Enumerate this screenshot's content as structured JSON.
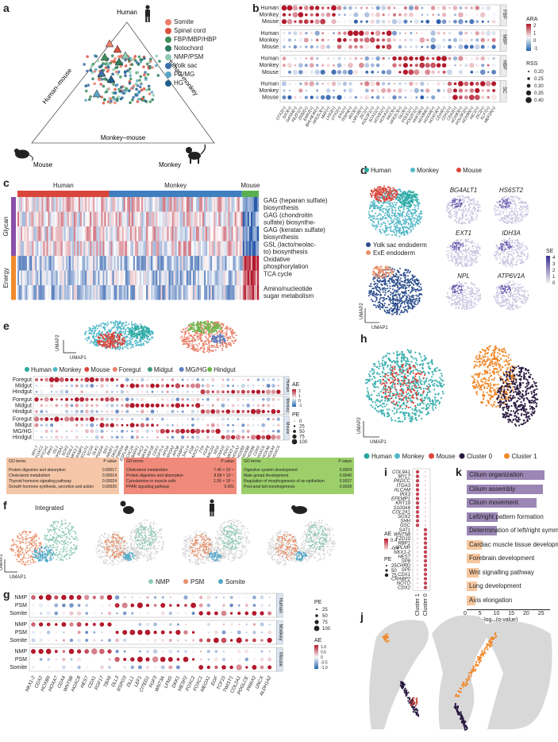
{
  "panels": {
    "a": "a",
    "b": "b",
    "c": "c",
    "d": "d",
    "e": "e",
    "f": "f",
    "g": "g",
    "h": "h",
    "i": "i",
    "j": "j",
    "k": "k"
  },
  "panel_a": {
    "top": "Human",
    "left_mid": "Human–mouse",
    "right_mid": "Human–monkey",
    "bottom_mid": "Monkey–mouse",
    "bl": "Mouse",
    "br": "Monkey",
    "legend": [
      {
        "label": "Somite",
        "color": "#e8806a"
      },
      {
        "label": "Spinal cord",
        "color": "#d9513e"
      },
      {
        "label": "FBP/MBP/HBP",
        "color": "#3f8f5a"
      },
      {
        "label": "Notochord",
        "color": "#2e7d5b"
      },
      {
        "label": "NMP/PSM",
        "color": "#8fcab3"
      },
      {
        "label": "Yolk sac",
        "color": "#3d6fa8"
      },
      {
        "label": "FG/MG",
        "color": "#5aa4c6"
      },
      {
        "label": "HG",
        "color": "#1e5f8a"
      }
    ]
  },
  "panel_b": {
    "rows": [
      "Human",
      "Monkey",
      "Mouse"
    ],
    "blocks": [
      "FBP",
      "MBP",
      "HBP",
      "SC"
    ],
    "genes": [
      "OTX2(+)",
      "SIX3(+)",
      "GATA4(+)",
      "FEZF1(+)",
      "ZEB2(+)",
      "EMX2(+)",
      "BHLHE40(+)",
      "NFE2L3(+)",
      "MAF(+)",
      "LHX2(+)",
      "OTX2(+)",
      "EN1(+)",
      "TFAP4(+)",
      "IRX3(+)",
      "LMX1B(+)",
      "ZIC1(+)",
      "POU3F1(+)",
      "SOX11(+)",
      "HOXB1(+)",
      "HOXA1(+)",
      "PAX3(+)",
      "NFE2L3(+)",
      "GLI3(+)",
      "POLE1(+)",
      "POU2F1(+)",
      "HNF1B(+)",
      "HOXB4(+)",
      "HOXA4(+)",
      "HOXC6(+)",
      "CDX4(+)",
      "CDX1(+)",
      "CDX2(+)",
      "HOXB3(+)",
      "POU3F2(+)",
      "HOXB5(+)",
      "HIC1(+)",
      "ZIC2(+)",
      "KLF7(+)",
      "MEF2A(+)"
    ],
    "ara_title": "ARA",
    "ara_ticks": [
      "2",
      "1",
      "0",
      "-1"
    ],
    "rss_title": "RSS",
    "rss_ticks": [
      "0.20",
      "0.25",
      "0.30",
      "0.35",
      "0.40"
    ]
  },
  "panel_c": {
    "groups": [
      {
        "label": "Human",
        "color": "#d9453a"
      },
      {
        "label": "Monkey",
        "color": "#3f7fc0"
      },
      {
        "label": "Mouse",
        "color": "#5ab050"
      }
    ],
    "side": [
      {
        "label": "Glycan",
        "color": "#8a4fa8"
      },
      {
        "label": "Energy",
        "color": "#f08a2a"
      }
    ],
    "terms": [
      "GAG (heparan sulfate) biosynthesis",
      "GAG (chondroitin sulfate) biosynthe-",
      "GAG (keratan sulfate) biosynthesis",
      "GSL (lacto/neolac- to) biosynthesis",
      "Oxidative phosphorylation",
      "TCA cycle",
      "Amino/nucleotide sugar metabolism"
    ]
  },
  "panel_d": {
    "legend1": [
      {
        "label": "Human",
        "color": "#2aa9a0"
      },
      {
        "label": "Monkey",
        "color": "#52b8c8"
      },
      {
        "label": "Mouse",
        "color": "#d9453a"
      }
    ],
    "legend2": [
      {
        "label": "Yolk sac endoderm",
        "color": "#2b4c8c"
      },
      {
        "label": "ExE endoderm",
        "color": "#e8906a"
      }
    ],
    "genes": [
      "BG4ALT1",
      "HS6ST2",
      "EXT1",
      "IDH3A",
      "NPL",
      "ATP6V1A"
    ],
    "se_title": "SE",
    "se_ticks": [
      "4",
      "3",
      "2",
      "1",
      "0"
    ],
    "ax1": "UMAP1",
    "ax2": "UMAP2"
  },
  "panel_e": {
    "ax1": "UMAP1",
    "ax2": "UMAP2",
    "legend": [
      {
        "label": "Human",
        "color": "#2aa9a0"
      },
      {
        "label": "Monkey",
        "color": "#52b8c8"
      },
      {
        "label": "Mouse",
        "color": "#d9453a"
      },
      {
        "label": "Foregut",
        "color": "#e8806a"
      },
      {
        "label": "Midgut",
        "color": "#3d9b7e"
      },
      {
        "label": "MG/HG",
        "color": "#5a7fc0"
      },
      {
        "label": "Hindgut",
        "color": "#6ab84a"
      }
    ],
    "rows_h": [
      "Foregut",
      "Midgut",
      "Hindgut"
    ],
    "rows_mk": [
      "Foregut",
      "Midgut",
      "Hindgut"
    ],
    "rows_mo": [
      "Foregut",
      "Midgut",
      "MG/HG",
      "Hindgut"
    ],
    "species": [
      "Human",
      "Monkey",
      "Mouse"
    ],
    "genes": [
      "MYL7",
      "FOXC1",
      "PTCH1",
      "PAX1",
      "ISL1",
      "CYP26A1",
      "SOX2",
      "VSNL1",
      "NKX2-1",
      "CRABP1",
      "ONECUT1",
      "SCG5",
      "DLK1",
      "PDGFA",
      "SIX1",
      "NR2F1",
      "TAGLN",
      "TMPO4",
      "EGFLAM",
      "ZCCHC24",
      "BARX1",
      "PHC2",
      "NKX6-1",
      "HNF1B",
      "CDX1",
      "ANGPTL4",
      "APOA",
      "APOA2",
      "APOB",
      "FABP2",
      "SALL4",
      "FGB",
      "APOC1",
      "TTR",
      "FGF8",
      "SMARCD3",
      "NFIX",
      "HOXA10",
      "PDX1",
      "NKX2-3",
      "HOXA7",
      "HOXB5",
      "HOXB9",
      "HOXB6",
      "CDX2",
      "HOXC6",
      "HOXA6",
      "HOXA9",
      "HOXC5"
    ],
    "ae_title": "AE",
    "ae_ticks": [
      "2",
      "1",
      "0",
      "-1"
    ],
    "pe_title": "PE",
    "pe_ticks": [
      "0",
      "25",
      "50",
      "75",
      "100"
    ],
    "go": [
      {
        "head": "GO terms",
        "pv": "P value",
        "color": "#f5c6a8",
        "items": [
          [
            "Protein digestion and absorption",
            "0.00017"
          ],
          [
            "Cholesterol metabolism",
            "0.00014"
          ],
          [
            "Thyroid hormone signaling pathway",
            "0.00024"
          ],
          [
            "Growth hormone synthesis, secretion and action",
            "0.00026"
          ]
        ]
      },
      {
        "head": "GO terms",
        "pv": "P value",
        "color": "#f08a7a",
        "items": [
          [
            "Cholesterol metabolism",
            "7.45 × 10⁻⁹"
          ],
          [
            "Protein digestion and absorption",
            "8.58 × 10⁻⁷"
          ],
          [
            "Cytoskeleton in muscle cells",
            "1.55 × 10⁻⁴"
          ],
          [
            "PPAR signaling pathway",
            "0.001"
          ]
        ]
      },
      {
        "head": "GO terms",
        "pv": "P value",
        "color": "#9ccf6a",
        "items": [
          [
            "Digestive system development",
            "0.0004"
          ],
          [
            "Male gonad development",
            "0.0040"
          ],
          [
            "Regulation of morphogenesis of an epithelium",
            "0.0037"
          ],
          [
            "Post-anal tail morphogenesis",
            "0.0028"
          ]
        ]
      }
    ]
  },
  "panel_f": {
    "integrated": "Integrated",
    "ax1": "UMAP1",
    "ax2": "UMAP2",
    "legend": [
      {
        "label": "NMP",
        "color": "#8fcab3"
      },
      {
        "label": "PSM",
        "color": "#e8906a"
      },
      {
        "label": "Somite",
        "color": "#4ea8c8"
      }
    ]
  },
  "panel_g": {
    "rows": [
      "NMP",
      "PSM",
      "Somite"
    ],
    "species": [
      "Human",
      "Monkey",
      "Mouse"
    ],
    "genes": [
      "NKX1-2",
      "CDX2",
      "HOXB9",
      "HOXA7",
      "CDX4",
      "WNT5B",
      "HOXC8",
      "HES7",
      "CDX1",
      "FGF17",
      "TBX6",
      "DLL3",
      "RSPO3",
      "DLL1",
      "LEF1",
      "CITED1",
      "FGF3",
      "WNT3A",
      "LFNG",
      "DKK1",
      "MESP2",
      "FOXC2",
      "FOXC1",
      "MEOX1",
      "EGF",
      "TCF15",
      "TWIST1",
      "COL2A1",
      "POGLCE",
      "PRRX2",
      "UNCX",
      "ALDH1A2"
    ],
    "pe_title": "PE",
    "pe_ticks": [
      "25",
      "50",
      "75",
      "100"
    ],
    "ae_title": "AE",
    "ae_ticks": [
      "1.0",
      "0.5",
      "0",
      "-0.5",
      "-1.0"
    ]
  },
  "panel_h": {
    "ax1": "UMAP1",
    "ax2": "UMAP2",
    "legend": [
      {
        "label": "Human",
        "color": "#2aa9a0"
      },
      {
        "label": "Monkey",
        "color": "#52b8c8"
      },
      {
        "label": "Mouse",
        "color": "#d9453a"
      },
      {
        "label": "Cluster 0",
        "color": "#2a1a40"
      },
      {
        "label": "Cluster 1",
        "color": "#f0882a"
      }
    ]
  },
  "panel_i": {
    "genes": [
      "COL9A1",
      "MYL7",
      "PKDCC",
      "ITGA3",
      "ALCAM",
      "IRX3",
      "EFEMP1",
      "KRT19",
      "S100A6",
      "COL2A1",
      "SOX2",
      "SHH",
      "GSC",
      "SAT1",
      "WNT5B",
      "FZD10",
      "RBP1",
      "APLNR",
      "NKX1-2",
      "HES7",
      "SP8",
      "CHRD",
      "SP5",
      "CDX1",
      "CRABP2",
      "NOTO",
      "CDX2"
    ],
    "cols": [
      "Cluster 1",
      "Cluster 0"
    ],
    "ae_title": "AE",
    "ae_ticks": [
      "0.4",
      "-0.4"
    ],
    "pe_title": "PE",
    "pe_ticks": [
      "25",
      "50",
      "75"
    ]
  },
  "panel_k": {
    "xlabel": "−log₁₀(q-value)",
    "xticks": [
      "0",
      "5",
      "10",
      "15",
      "20",
      "25"
    ],
    "bars": [
      {
        "label": "Cilium organization",
        "value": 26,
        "color": "#9b86b5"
      },
      {
        "label": "Cilium assembly",
        "value": 25.5,
        "color": "#9b86b5"
      },
      {
        "label": "Cilium movement",
        "value": 23.5,
        "color": "#9b86b5"
      },
      {
        "label": "Left/right pattern formation",
        "value": 10.5,
        "color": "#9b86b5"
      },
      {
        "label": "Determination of left/right symmetry",
        "value": 10,
        "color": "#9b86b5"
      },
      {
        "label": "Cardiac muscle tissue development",
        "value": 5,
        "color": "#f6c79e"
      },
      {
        "label": "Forebrain development",
        "value": 4.5,
        "color": "#f6c79e"
      },
      {
        "label": "Wnt signalling pathway",
        "value": 4,
        "color": "#f6c79e"
      },
      {
        "label": "Lung development",
        "value": 3.5,
        "color": "#f6c79e"
      },
      {
        "label": "Axis elongation",
        "value": 3,
        "color": "#f6c79e"
      }
    ],
    "xmax": 28
  }
}
